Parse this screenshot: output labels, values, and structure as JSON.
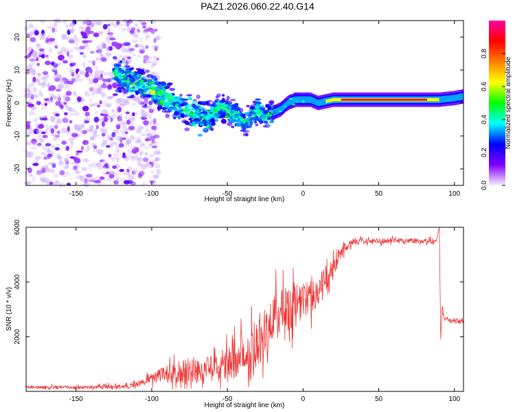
{
  "page_title": "PAZ1.2026.060.22.40.G14",
  "chart_data": [
    {
      "type": "heatmap",
      "title": "PAZ1.2026.060.22.40.G14",
      "xlabel": "Height of straight line (km)",
      "ylabel": "Frequency (Hz)",
      "xlim": [
        -183,
        106
      ],
      "ylim": [
        -25,
        25
      ],
      "xticks": [
        -150,
        -100,
        -50,
        0,
        50,
        100
      ],
      "yticks": [
        -20,
        -10,
        0,
        10,
        20
      ],
      "colorbar": {
        "label": "Normalized spectral amplitude",
        "range": [
          0,
          1
        ],
        "ticks": [
          0.0,
          0.2,
          0.4,
          0.6,
          0.8
        ],
        "tick_labels": [
          "0.0",
          "0.2",
          "0.4",
          "0.6",
          "0.8"
        ],
        "colormap": [
          "#f8f0ff",
          "#8000ff",
          "#0000ff",
          "#00ffff",
          "#00ff00",
          "#ffff00",
          "#ff8000",
          "#ff0000",
          "#ff00a0"
        ]
      },
      "ridge": {
        "x": [
          -125,
          -110,
          -100,
          -92,
          -85,
          -78,
          -70,
          -62,
          -55,
          -45,
          -38,
          -30,
          -25,
          -20,
          -15,
          -10,
          -5,
          0,
          5,
          10,
          20,
          40,
          60,
          80,
          90,
          100,
          106
        ],
        "freq_hz": [
          9,
          6,
          4,
          2,
          0,
          -2,
          -4,
          -5,
          -1,
          -4,
          -6,
          -2,
          -4,
          -3,
          -2,
          0,
          1,
          1,
          1,
          0,
          1,
          1,
          1,
          1,
          1,
          1.5,
          2
        ]
      },
      "noise_region_x": [
        -183,
        -110
      ],
      "stable_region_x": [
        10,
        106
      ],
      "stable_freq_hz": 1
    },
    {
      "type": "line",
      "xlabel": "Height of straight line (km)",
      "ylabel": "SNR (10 * v/v)",
      "xlim": [
        -183,
        106
      ],
      "ylim": [
        0,
        6000
      ],
      "xticks": [
        -150,
        -100,
        -50,
        0,
        50,
        100
      ],
      "yticks": [
        2000,
        4000,
        6000
      ],
      "color": "#ee3333",
      "series": [
        {
          "name": "SNR",
          "x": [
            -183,
            -150,
            -120,
            -110,
            -100,
            -90,
            -80,
            -70,
            -60,
            -50,
            -40,
            -30,
            -20,
            -10,
            0,
            10,
            20,
            25,
            30,
            40,
            50,
            60,
            70,
            80,
            88,
            90,
            91,
            92,
            93,
            95,
            100,
            106
          ],
          "y": [
            150,
            150,
            180,
            250,
            500,
            650,
            700,
            750,
            800,
            1000,
            1300,
            1800,
            2600,
            3100,
            3300,
            3700,
            4500,
            5100,
            5400,
            5500,
            5500,
            5500,
            5520,
            5500,
            5500,
            6000,
            1900,
            3200,
            2700,
            2600,
            2580,
            2550
          ],
          "noise_amplitude": [
            60,
            60,
            80,
            100,
            200,
            300,
            500,
            500,
            500,
            600,
            800,
            900,
            1000,
            900,
            700,
            600,
            400,
            250,
            150,
            100,
            100,
            100,
            100,
            100,
            100,
            0,
            0,
            100,
            100,
            80,
            80,
            80
          ]
        }
      ]
    }
  ]
}
